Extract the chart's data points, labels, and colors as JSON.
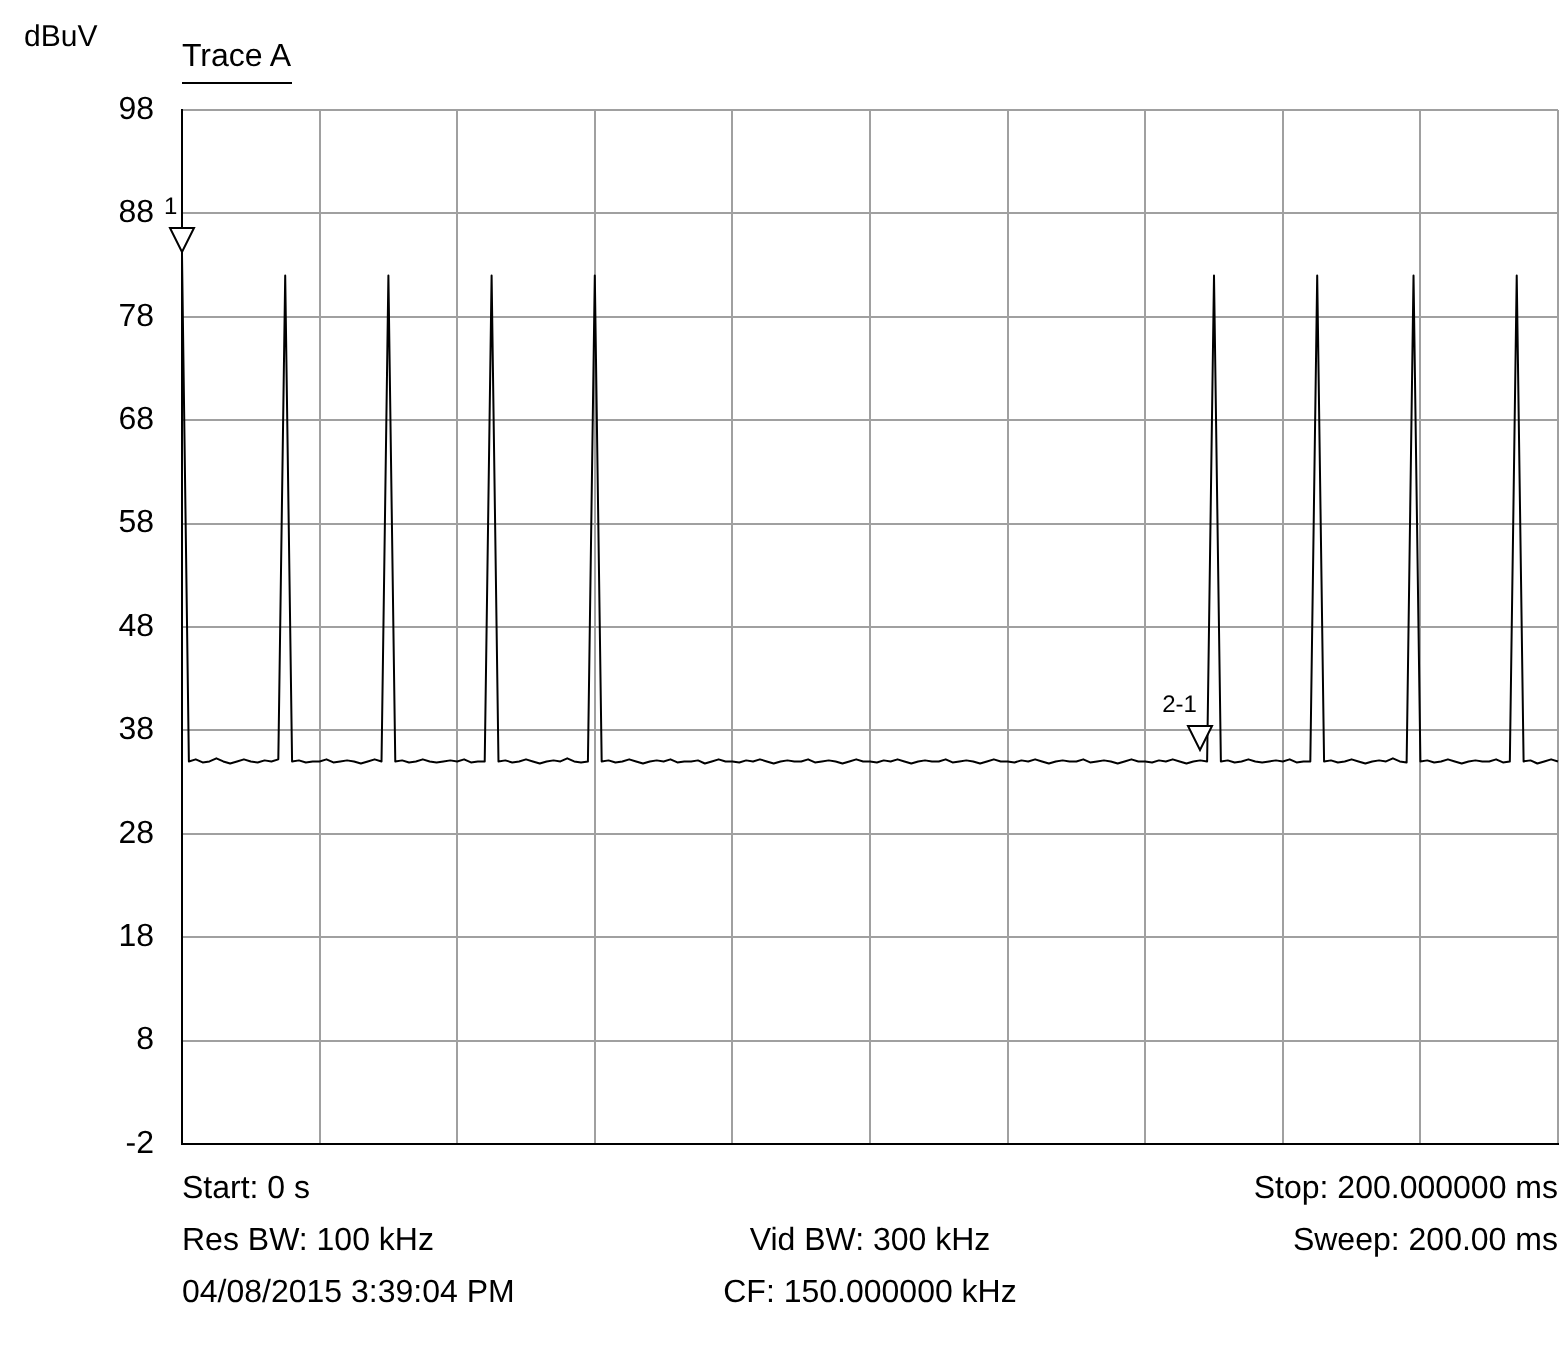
{
  "chart_data": {
    "type": "line",
    "title": "Trace A",
    "ylabel": "dBuV",
    "ylim": [
      -2,
      98
    ],
    "yticks": [
      -2,
      8,
      18,
      28,
      38,
      48,
      58,
      68,
      78,
      88,
      98
    ],
    "tick_labels": "y",
    "grid": true,
    "marker": "none",
    "line_style": "solid",
    "categories": [
      null,
      null,
      null,
      null,
      null,
      null,
      null,
      null,
      null,
      null,
      null,
      null,
      null,
      null,
      null,
      null,
      null,
      null,
      null,
      null,
      null,
      null,
      null,
      null,
      null,
      null,
      null,
      null,
      null,
      null,
      null,
      null,
      null,
      null,
      null,
      null,
      null,
      null,
      null,
      null,
      null,
      null,
      null,
      null,
      null,
      null,
      null,
      null,
      null,
      null,
      null,
      null,
      null,
      null,
      null,
      null,
      null,
      null,
      null,
      null,
      null,
      null,
      null,
      null,
      null,
      null,
      null,
      null,
      null,
      null,
      null,
      null,
      null,
      null,
      null,
      null,
      null,
      null,
      null,
      null,
      null,
      null,
      null,
      null,
      null,
      null,
      null,
      null,
      null,
      null,
      null,
      null,
      null,
      null,
      null,
      null,
      null,
      null,
      null,
      null,
      null,
      null,
      null,
      null,
      null,
      null,
      null,
      null,
      null,
      null,
      null,
      null,
      null,
      null,
      null,
      null,
      null,
      null,
      null,
      null,
      null,
      null,
      null,
      null,
      null,
      null,
      null,
      null,
      null,
      null,
      null,
      null,
      null,
      null,
      null,
      null,
      null,
      null,
      null,
      null,
      null,
      null,
      null,
      null,
      null,
      null,
      null,
      null,
      null,
      null,
      null,
      null,
      null,
      null,
      null,
      null,
      null,
      null,
      null,
      null,
      null,
      null,
      null,
      null,
      null,
      null,
      null,
      null,
      null,
      null,
      null,
      null,
      null,
      null,
      null,
      null,
      null,
      null,
      null,
      null,
      null,
      null,
      null,
      null,
      null,
      null,
      null,
      null,
      null,
      null,
      null,
      null,
      null,
      null,
      null,
      null,
      null,
      null,
      null,
      null,
      null
    ],
    "series": [
      {
        "color": "#000000",
        "values": [
          84,
          35,
          35.2,
          34.9,
          35,
          35.3,
          35,
          34.8,
          35,
          35.2,
          35,
          34.9,
          35.1,
          35,
          35.2,
          82,
          35,
          35.1,
          34.9,
          35,
          35,
          35.2,
          34.9,
          35,
          35.1,
          35,
          34.8,
          35,
          35.2,
          35,
          82,
          35,
          35.1,
          34.9,
          35,
          35.2,
          35,
          34.9,
          35,
          35.1,
          35,
          35.2,
          34.9,
          35,
          35,
          82,
          35,
          35.1,
          34.9,
          35,
          35.2,
          35,
          34.8,
          35,
          35.1,
          35,
          35.3,
          35,
          34.9,
          35,
          82,
          35,
          35.1,
          34.9,
          35,
          35.2,
          35,
          34.8,
          35,
          35.1,
          35,
          35.2,
          34.9,
          35,
          35,
          35.1,
          34.8,
          35,
          35.2,
          35,
          35,
          34.9,
          35.1,
          35,
          35.2,
          35,
          34.8,
          35,
          35.1,
          35,
          35,
          35.2,
          34.9,
          35,
          35.1,
          35,
          34.8,
          35,
          35.2,
          35,
          35,
          34.9,
          35.1,
          35,
          35.2,
          35,
          34.8,
          35,
          35.1,
          35,
          35,
          35.2,
          34.9,
          35,
          35.1,
          35,
          34.8,
          35,
          35.2,
          35,
          35,
          34.9,
          35.1,
          35,
          35.2,
          35,
          34.8,
          35,
          35.1,
          35,
          35,
          35.2,
          34.9,
          35,
          35.1,
          35,
          34.8,
          35,
          35.2,
          35,
          35,
          34.9,
          35.1,
          35,
          35.2,
          35,
          34.8,
          35,
          35.1,
          35,
          82,
          35,
          35.1,
          34.9,
          35,
          35.2,
          35,
          34.9,
          35,
          35.1,
          35,
          35.2,
          34.9,
          35,
          35,
          82,
          35,
          35.1,
          34.9,
          35,
          35.2,
          35,
          34.8,
          35,
          35.1,
          35,
          35.3,
          35,
          34.9,
          82,
          35,
          35.1,
          34.9,
          35,
          35.2,
          35,
          34.8,
          35,
          35.1,
          35,
          35,
          35.2,
          34.9,
          35,
          82,
          35,
          35.1,
          34.8,
          35,
          35.2,
          35
        ]
      }
    ],
    "annotations": [
      "1",
      "2-1",
      "Start: 0 s",
      "Stop: 200.000000 ms",
      "Res BW: 100 kHz",
      "Vid BW: 300 kHz",
      "Sweep: 200.00 ms",
      "04/08/2015 3:39:04 PM",
      "CF: 150.000000 kHz"
    ]
  }
}
